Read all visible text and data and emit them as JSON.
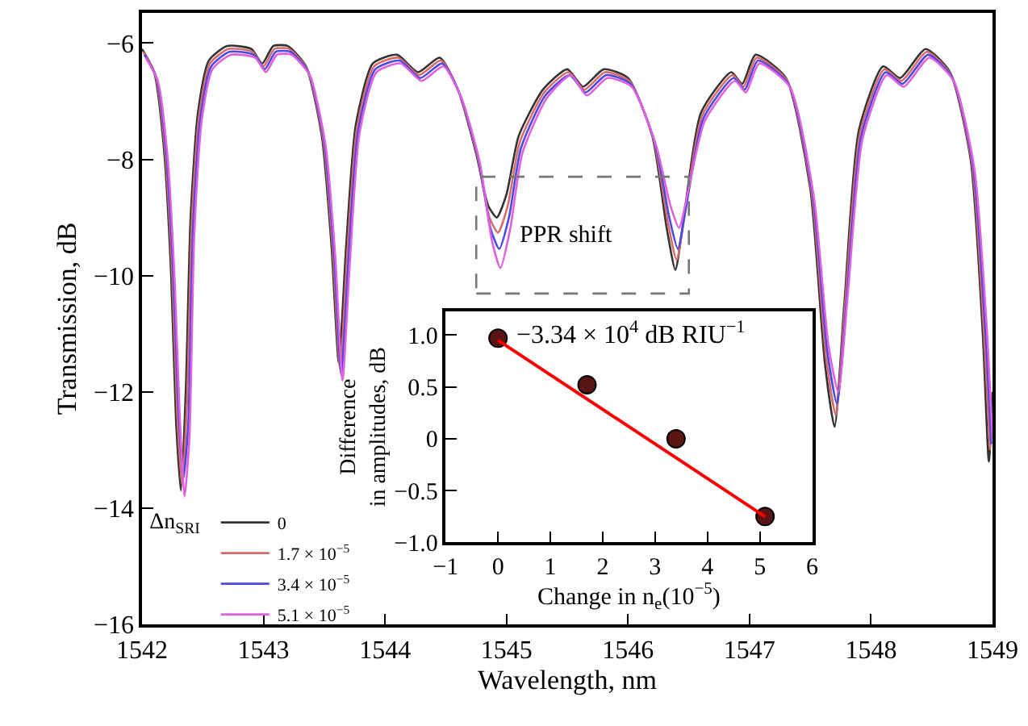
{
  "chart_data": [
    {
      "type": "line",
      "xlabel": "Wavelength, nm",
      "ylabel": "Transmission, dB",
      "legend_title": "Δn$_{SRI}$",
      "legend": "bottom left",
      "marker": "none",
      "line_style": "solid",
      "xlim": [
        1542,
        1549
      ],
      "xticks": [
        1542,
        1543,
        1544,
        1545,
        1546,
        1547,
        1548,
        1549
      ],
      "ylim": [
        -16,
        -5.48
      ],
      "yticks": [
        -16,
        -14,
        -12,
        -10,
        -8,
        -6
      ],
      "x": [
        1542.0,
        1542.1,
        1542.18,
        1542.24,
        1542.28,
        1542.32,
        1542.36,
        1542.4,
        1542.46,
        1542.55,
        1542.7,
        1542.9,
        1542.99,
        1543.08,
        1543.2,
        1543.35,
        1543.48,
        1543.56,
        1543.62,
        1543.68,
        1543.76,
        1543.9,
        1544.1,
        1544.27,
        1544.45,
        1544.6,
        1544.75,
        1544.85,
        1544.92,
        1545.0,
        1545.1,
        1545.3,
        1545.5,
        1545.63,
        1545.8,
        1546.0,
        1546.2,
        1546.32,
        1546.39,
        1546.46,
        1546.6,
        1546.85,
        1546.94,
        1547.05,
        1547.3,
        1547.5,
        1547.62,
        1547.7,
        1547.78,
        1547.9,
        1548.1,
        1548.24,
        1548.45,
        1548.65,
        1548.82,
        1548.92,
        1548.97,
        1549.0
      ],
      "annotations": [
        "PPR shift"
      ],
      "series": [
        {
          "name": "0",
          "color": "#333333",
          "values": [
            -6.1,
            -6.5,
            -7.8,
            -10.0,
            -12.5,
            -13.7,
            -12.0,
            -9.0,
            -7.2,
            -6.3,
            -6.05,
            -6.1,
            -6.35,
            -6.05,
            -6.05,
            -6.4,
            -7.6,
            -9.5,
            -11.5,
            -9.5,
            -7.4,
            -6.35,
            -6.2,
            -6.5,
            -6.25,
            -6.8,
            -7.9,
            -8.8,
            -9.0,
            -8.6,
            -7.6,
            -6.8,
            -6.45,
            -6.75,
            -6.45,
            -6.6,
            -7.6,
            -9.2,
            -9.9,
            -9.0,
            -7.2,
            -6.5,
            -6.7,
            -6.2,
            -6.6,
            -8.5,
            -11.5,
            -12.6,
            -10.5,
            -7.5,
            -6.4,
            -6.6,
            -6.1,
            -6.5,
            -8.0,
            -11.0,
            -13.2,
            -12.0
          ]
        },
        {
          "name": "1.7 × 10$^{−5}$",
          "color": "#d96a6a",
          "x": [
            1542.01,
            1542.11,
            1542.19,
            1542.25,
            1542.29,
            1542.33,
            1542.37,
            1542.41,
            1542.47,
            1542.56,
            1542.71,
            1542.91,
            1543.0,
            1543.09,
            1543.21,
            1543.36,
            1543.49,
            1543.57,
            1543.63,
            1543.69,
            1543.77,
            1543.91,
            1544.11,
            1544.28,
            1544.46,
            1544.61,
            1544.76,
            1544.86,
            1544.93,
            1545.01,
            1545.11,
            1545.31,
            1545.51,
            1545.64,
            1545.81,
            1546.01,
            1546.21,
            1546.33,
            1546.4,
            1546.47,
            1546.61,
            1546.86,
            1546.95,
            1547.06,
            1547.31,
            1547.51,
            1547.63,
            1547.71,
            1547.79,
            1547.91,
            1548.11,
            1548.25,
            1548.46,
            1548.66,
            1548.83,
            1548.93,
            1548.98
          ],
          "values": [
            -6.15,
            -6.55,
            -7.85,
            -10.05,
            -12.4,
            -13.6,
            -12.2,
            -9.05,
            -7.25,
            -6.35,
            -6.1,
            -6.15,
            -6.4,
            -6.1,
            -6.1,
            -6.45,
            -7.65,
            -9.55,
            -11.6,
            -9.6,
            -7.45,
            -6.4,
            -6.25,
            -6.55,
            -6.3,
            -6.85,
            -7.95,
            -9.0,
            -9.26,
            -8.8,
            -7.7,
            -6.85,
            -6.5,
            -6.8,
            -6.5,
            -6.65,
            -7.65,
            -9.1,
            -9.73,
            -8.9,
            -7.25,
            -6.55,
            -6.75,
            -6.25,
            -6.65,
            -8.55,
            -11.4,
            -12.4,
            -10.4,
            -7.55,
            -6.45,
            -6.65,
            -6.15,
            -6.55,
            -8.05,
            -11.0,
            -13.0
          ]
        },
        {
          "name": "3.4 × 10$^{−5}$",
          "color": "#4a4ae0",
          "x": [
            1542.02,
            1542.12,
            1542.2,
            1542.26,
            1542.3,
            1542.34,
            1542.38,
            1542.42,
            1542.48,
            1542.57,
            1542.72,
            1542.92,
            1543.01,
            1543.1,
            1543.22,
            1543.37,
            1543.5,
            1543.58,
            1543.64,
            1543.7,
            1543.78,
            1543.92,
            1544.12,
            1544.29,
            1544.47,
            1544.62,
            1544.77,
            1544.87,
            1544.94,
            1545.02,
            1545.12,
            1545.32,
            1545.52,
            1545.65,
            1545.82,
            1546.02,
            1546.22,
            1546.34,
            1546.41,
            1546.48,
            1546.62,
            1546.87,
            1546.96,
            1547.07,
            1547.32,
            1547.52,
            1547.64,
            1547.72,
            1547.8,
            1547.92,
            1548.12,
            1548.26,
            1548.47,
            1548.67,
            1548.84,
            1548.94,
            1548.99
          ],
          "values": [
            -6.2,
            -6.6,
            -7.9,
            -10.1,
            -12.3,
            -13.5,
            -12.6,
            -9.2,
            -7.3,
            -6.4,
            -6.15,
            -6.2,
            -6.45,
            -6.15,
            -6.15,
            -6.5,
            -7.7,
            -9.6,
            -11.7,
            -9.7,
            -7.5,
            -6.45,
            -6.3,
            -6.6,
            -6.35,
            -6.9,
            -8.0,
            -9.2,
            -9.54,
            -9.0,
            -7.8,
            -6.9,
            -6.55,
            -6.85,
            -6.55,
            -6.7,
            -7.7,
            -9.0,
            -9.54,
            -8.8,
            -7.3,
            -6.6,
            -6.8,
            -6.3,
            -6.7,
            -8.6,
            -11.3,
            -12.2,
            -10.4,
            -7.6,
            -6.5,
            -6.7,
            -6.2,
            -6.6,
            -8.1,
            -10.9,
            -12.9
          ]
        },
        {
          "name": "5.1 × 10$^{−5}$",
          "color": "#e060e0",
          "x": [
            1542.03,
            1542.13,
            1542.21,
            1542.27,
            1542.31,
            1542.35,
            1542.39,
            1542.43,
            1542.49,
            1542.58,
            1542.73,
            1542.93,
            1543.02,
            1543.11,
            1543.23,
            1543.38,
            1543.51,
            1543.59,
            1543.65,
            1543.71,
            1543.79,
            1543.93,
            1544.13,
            1544.3,
            1544.48,
            1544.63,
            1544.78,
            1544.88,
            1544.95,
            1545.03,
            1545.13,
            1545.33,
            1545.53,
            1545.66,
            1545.83,
            1546.03,
            1546.23,
            1546.35,
            1546.42,
            1546.49,
            1546.63,
            1546.88,
            1546.97,
            1547.08,
            1547.33,
            1547.53,
            1547.65,
            1547.73,
            1547.81,
            1547.93,
            1548.13,
            1548.27,
            1548.48,
            1548.68,
            1548.85,
            1548.95,
            1549.0
          ],
          "values": [
            -6.25,
            -6.65,
            -7.95,
            -10.15,
            -12.4,
            -13.8,
            -12.8,
            -9.3,
            -7.35,
            -6.45,
            -6.2,
            -6.25,
            -6.5,
            -6.2,
            -6.2,
            -6.55,
            -7.75,
            -9.65,
            -11.8,
            -9.8,
            -7.55,
            -6.5,
            -6.35,
            -6.65,
            -6.4,
            -6.95,
            -8.05,
            -9.4,
            -9.87,
            -9.2,
            -7.9,
            -6.95,
            -6.55,
            -6.9,
            -6.6,
            -6.75,
            -7.75,
            -8.8,
            -9.18,
            -8.6,
            -7.35,
            -6.65,
            -6.85,
            -6.35,
            -6.75,
            -8.65,
            -11.2,
            -12.0,
            -10.3,
            -7.65,
            -6.55,
            -6.75,
            -6.25,
            -6.65,
            -8.15,
            -10.8,
            -12.8
          ]
        }
      ]
    },
    {
      "type": "scatter",
      "xlabel": "Change in n$_{e}$(10$^{−5}$)",
      "ylabel": "Difference\nin amplitudes, dB",
      "legend": false,
      "xlim": [
        -1,
        6
      ],
      "xticks": [
        {
          "value": -1,
          "label": "−1"
        },
        0,
        1,
        2,
        3,
        4,
        5,
        6
      ],
      "ylim": [
        -1,
        1.23
      ],
      "yticks": [
        {
          "value": -1,
          "label": "−1.0"
        },
        {
          "value": -0.5,
          "label": "−0.5"
        },
        0,
        {
          "value": 0.5,
          "label": "0.5"
        },
        {
          "value": 1,
          "label": "1.0"
        }
      ],
      "annotations": [
        "−3.34 × 10$^{4}$ dB RIU$^{−1}$"
      ],
      "series": [
        {
          "type": "scatter",
          "marker": "circle",
          "color": "#5a1414",
          "x": [
            0,
            1.7,
            3.4,
            5.1
          ],
          "values": [
            0.97,
            0.52,
            0.0,
            -0.75
          ]
        },
        {
          "type": "line",
          "marker": "none",
          "color": "#ff0000",
          "x": [
            0,
            5.1
          ],
          "values": [
            0.95,
            -0.75
          ]
        }
      ]
    }
  ]
}
